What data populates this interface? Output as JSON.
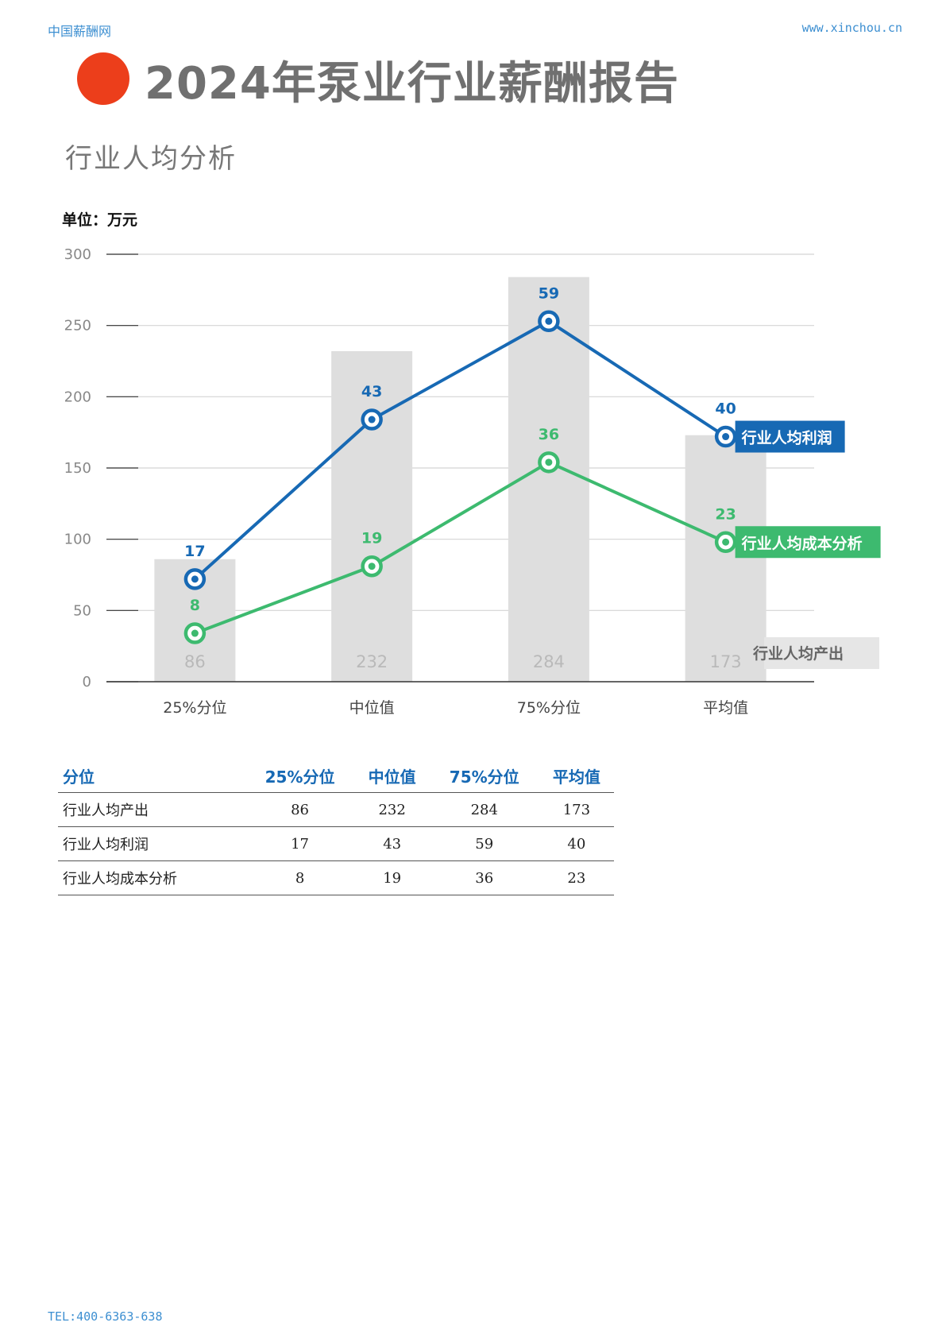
{
  "header": {
    "site_name": "中国薪酬网",
    "url": "www.xinchou.cn"
  },
  "page": {
    "title": "2024年泵业行业薪酬报告",
    "subtitle": "行业人均分析",
    "unit_label": "单位：万元"
  },
  "chart_data": {
    "type": "bar",
    "categories": [
      "25%分位",
      "中位值",
      "75%分位",
      "平均值"
    ],
    "y_ticks": [
      0,
      50,
      100,
      150,
      200,
      250,
      300
    ],
    "ylim": [
      0,
      300
    ],
    "grid": true,
    "series": [
      {
        "name": "行业人均产出",
        "type": "bar",
        "values": [
          86,
          232,
          284,
          173
        ],
        "color": "#dedede",
        "label_color": "#b9b9b9"
      },
      {
        "name": "行业人均利润",
        "type": "line",
        "values": [
          17,
          43,
          59,
          40
        ],
        "plot_values": [
          72,
          184,
          253,
          172
        ],
        "color": "#1769b4"
      },
      {
        "name": "行业人均成本分析",
        "type": "line",
        "values": [
          8,
          19,
          36,
          23
        ],
        "plot_values": [
          34,
          81,
          154,
          98
        ],
        "color": "#3dba6f"
      }
    ]
  },
  "table": {
    "headers": [
      "分位",
      "25%分位",
      "中位值",
      "75%分位",
      "平均值"
    ],
    "rows": [
      [
        "行业人均产出",
        "86",
        "232",
        "284",
        "173"
      ],
      [
        "行业人均利润",
        "17",
        "43",
        "59",
        "40"
      ],
      [
        "行业人均成本分析",
        "8",
        "19",
        "36",
        "23"
      ]
    ]
  },
  "footer": {
    "tel": "TEL:400-6363-638"
  }
}
